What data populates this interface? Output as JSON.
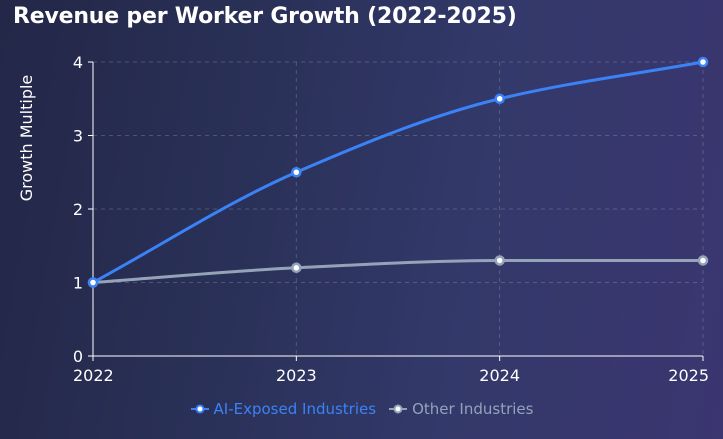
{
  "chart_data": {
    "type": "line",
    "title": "Revenue per Worker Growth (2022-2025)",
    "xlabel": "",
    "ylabel": "Growth Multiple",
    "x": [
      "2022",
      "2023",
      "2024",
      "2025"
    ],
    "ylim": [
      0,
      4
    ],
    "yticks": [
      0,
      1,
      2,
      3,
      4
    ],
    "grid": true,
    "legend_position": "bottom",
    "series": [
      {
        "name": "AI-Exposed Industries",
        "values": [
          1,
          2.5,
          3.5,
          4
        ],
        "color": "#3b82f6"
      },
      {
        "name": "Other Industries",
        "values": [
          1,
          1.2,
          1.3,
          1.3
        ],
        "color": "#94a3b8"
      }
    ]
  }
}
